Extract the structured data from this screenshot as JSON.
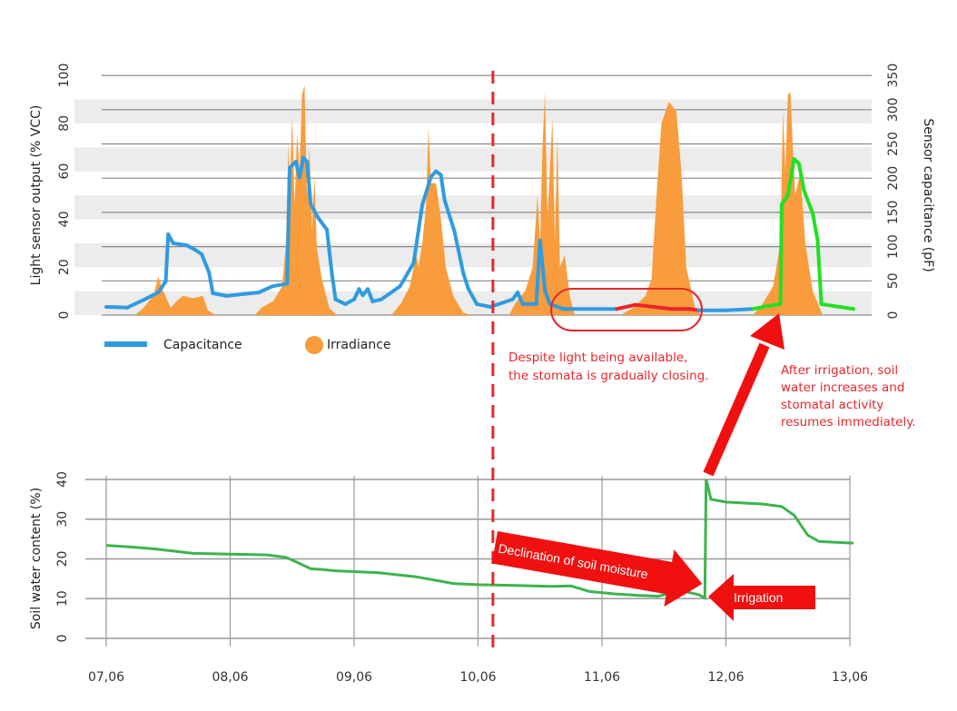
{
  "chart_data": [
    {
      "type": "line",
      "title": "",
      "ylabel": "Light sensor output (% VCC)",
      "ylabel_right": "Sensor capacitance (pF)",
      "ylim": [
        0,
        100
      ],
      "ylim_right": [
        0,
        350
      ],
      "yticks": [
        "0",
        "20",
        "40",
        "60",
        "80",
        "100"
      ],
      "yticks_right": [
        "0",
        "50",
        "100",
        "150",
        "200",
        "250",
        "300",
        "350"
      ],
      "grid": true,
      "legend": {
        "placement": "bottom-left",
        "entries": [
          "Capacitance",
          "Irradiance"
        ]
      },
      "colors": {
        "capacitance": "#2f9be0",
        "irradiance": "#f89c3c",
        "stress": "#e8262b",
        "recovery": "#22e022",
        "band": "#ececec"
      },
      "x_unit": "days since 07,06",
      "series": [
        {
          "name": "Capacitance",
          "axis": "right",
          "segments_note": "red between day 4.12 and 4.78, green after day 5.22",
          "points": [
            [
              0,
              12
            ],
            [
              0.17,
              11
            ],
            [
              0.31,
              23
            ],
            [
              0.42,
              33
            ],
            [
              0.48,
              49
            ],
            [
              0.5,
              118
            ],
            [
              0.54,
              105
            ],
            [
              0.65,
              102
            ],
            [
              0.72,
              95
            ],
            [
              0.77,
              89
            ],
            [
              0.83,
              62
            ],
            [
              0.86,
              32
            ],
            [
              0.97,
              28
            ],
            [
              1.12,
              31
            ],
            [
              1.23,
              33
            ],
            [
              1.34,
              42
            ],
            [
              1.46,
              46
            ],
            [
              1.48,
              215
            ],
            [
              1.53,
              224
            ],
            [
              1.56,
              201
            ],
            [
              1.59,
              230
            ],
            [
              1.62,
              224
            ],
            [
              1.65,
              162
            ],
            [
              1.71,
              142
            ],
            [
              1.78,
              125
            ],
            [
              1.82,
              62
            ],
            [
              1.85,
              23
            ],
            [
              1.93,
              16
            ],
            [
              2.0,
              23
            ],
            [
              2.04,
              38
            ],
            [
              2.07,
              29
            ],
            [
              2.11,
              38
            ],
            [
              2.15,
              20
            ],
            [
              2.22,
              23
            ],
            [
              2.37,
              42
            ],
            [
              2.48,
              76
            ],
            [
              2.55,
              161
            ],
            [
              2.62,
              202
            ],
            [
              2.66,
              210
            ],
            [
              2.7,
              205
            ],
            [
              2.73,
              168
            ],
            [
              2.81,
              122
            ],
            [
              2.88,
              62
            ],
            [
              2.92,
              39
            ],
            [
              2.99,
              16
            ],
            [
              3.1,
              12
            ],
            [
              3.28,
              23
            ],
            [
              3.32,
              33
            ],
            [
              3.36,
              16
            ],
            [
              3.47,
              16
            ],
            [
              3.5,
              109
            ],
            [
              3.54,
              36
            ],
            [
              3.58,
              16
            ],
            [
              3.69,
              9
            ],
            [
              4.12,
              9
            ],
            [
              4.27,
              15
            ],
            [
              4.42,
              12
            ],
            [
              4.56,
              9
            ],
            [
              4.71,
              9
            ],
            [
              4.78,
              7
            ],
            [
              5.0,
              7
            ],
            [
              5.22,
              9
            ],
            [
              5.33,
              13
            ],
            [
              5.44,
              16
            ],
            [
              5.45,
              162
            ],
            [
              5.5,
              175
            ],
            [
              5.55,
              228
            ],
            [
              5.59,
              221
            ],
            [
              5.63,
              182
            ],
            [
              5.7,
              149
            ],
            [
              5.74,
              109
            ],
            [
              5.77,
              16
            ],
            [
              6.03,
              9
            ]
          ]
        },
        {
          "name": "Irradiance",
          "axis": "left",
          "type": "area",
          "points": [
            [
              0,
              0
            ],
            [
              0.23,
              0
            ],
            [
              0.3,
              3
            ],
            [
              0.38,
              8
            ],
            [
              0.42,
              16
            ],
            [
              0.46,
              10
            ],
            [
              0.52,
              3
            ],
            [
              0.57,
              6
            ],
            [
              0.62,
              8
            ],
            [
              0.7,
              7
            ],
            [
              0.78,
              8
            ],
            [
              0.82,
              2
            ],
            [
              0.88,
              0
            ],
            [
              1.2,
              0
            ],
            [
              1.25,
              3
            ],
            [
              1.35,
              6
            ],
            [
              1.42,
              12
            ],
            [
              1.45,
              30
            ],
            [
              1.47,
              72
            ],
            [
              1.48,
              50
            ],
            [
              1.5,
              83
            ],
            [
              1.52,
              45
            ],
            [
              1.54,
              76
            ],
            [
              1.56,
              60
            ],
            [
              1.58,
              92
            ],
            [
              1.6,
              96
            ],
            [
              1.62,
              50
            ],
            [
              1.64,
              70
            ],
            [
              1.66,
              35
            ],
            [
              1.68,
              58
            ],
            [
              1.7,
              28
            ],
            [
              1.74,
              15
            ],
            [
              1.8,
              3
            ],
            [
              1.86,
              0
            ],
            [
              2.3,
              0
            ],
            [
              2.38,
              5
            ],
            [
              2.45,
              12
            ],
            [
              2.5,
              25
            ],
            [
              2.52,
              20
            ],
            [
              2.55,
              30
            ],
            [
              2.58,
              45
            ],
            [
              2.6,
              78
            ],
            [
              2.62,
              55
            ],
            [
              2.66,
              55
            ],
            [
              2.7,
              40
            ],
            [
              2.74,
              20
            ],
            [
              2.8,
              8
            ],
            [
              2.88,
              1
            ],
            [
              2.95,
              0
            ],
            [
              3.25,
              0
            ],
            [
              3.3,
              5
            ],
            [
              3.38,
              10
            ],
            [
              3.44,
              20
            ],
            [
              3.48,
              50
            ],
            [
              3.5,
              30
            ],
            [
              3.52,
              70
            ],
            [
              3.54,
              93
            ],
            [
              3.56,
              40
            ],
            [
              3.6,
              82
            ],
            [
              3.62,
              30
            ],
            [
              3.64,
              75
            ],
            [
              3.66,
              20
            ],
            [
              3.7,
              25
            ],
            [
              3.74,
              8
            ],
            [
              3.78,
              0
            ],
            [
              4.15,
              0
            ],
            [
              4.25,
              3
            ],
            [
              4.35,
              8
            ],
            [
              4.4,
              15
            ],
            [
              4.44,
              50
            ],
            [
              4.48,
              80
            ],
            [
              4.54,
              89
            ],
            [
              4.6,
              85
            ],
            [
              4.64,
              60
            ],
            [
              4.68,
              20
            ],
            [
              4.75,
              3
            ],
            [
              4.8,
              0
            ],
            [
              5.22,
              0
            ],
            [
              5.3,
              5
            ],
            [
              5.38,
              12
            ],
            [
              5.44,
              30
            ],
            [
              5.46,
              85
            ],
            [
              5.48,
              60
            ],
            [
              5.5,
              92
            ],
            [
              5.52,
              93
            ],
            [
              5.54,
              70
            ],
            [
              5.56,
              50
            ],
            [
              5.6,
              60
            ],
            [
              5.64,
              30
            ],
            [
              5.7,
              10
            ],
            [
              5.78,
              0
            ],
            [
              6.03,
              0
            ]
          ]
        }
      ],
      "annotations": [
        {
          "text_lines": [
            "Despite light being available,",
            "the stomata is gradually closing."
          ]
        },
        {
          "text_lines": [
            "After irrigation, soil",
            "water increases and",
            "stomatal activity",
            "resumes immediately."
          ]
        }
      ],
      "marker_line_day": 3.12
    },
    {
      "type": "line",
      "ylabel": "Soil water content (%)",
      "xlabel": "",
      "ylim": [
        0,
        40
      ],
      "yticks": [
        "0",
        "10",
        "20",
        "30",
        "40"
      ],
      "xticks": [
        "07,06",
        "08,06",
        "09,06",
        "10,06",
        "11,06",
        "12,06",
        "13,06"
      ],
      "grid": true,
      "colors": {
        "line": "#3cb44b",
        "arrow": "#f01010"
      },
      "series": [
        {
          "name": "Soil water content",
          "points": [
            [
              0,
              23.4
            ],
            [
              0.2,
              23
            ],
            [
              0.4,
              22.5
            ],
            [
              0.7,
              21.4
            ],
            [
              1.0,
              21.2
            ],
            [
              1.3,
              21
            ],
            [
              1.45,
              20.4
            ],
            [
              1.55,
              19
            ],
            [
              1.65,
              17.5
            ],
            [
              1.75,
              17.3
            ],
            [
              1.85,
              17
            ],
            [
              2.2,
              16.5
            ],
            [
              2.5,
              15.5
            ],
            [
              2.8,
              13.8
            ],
            [
              3.0,
              13.5
            ],
            [
              3.3,
              13.3
            ],
            [
              3.6,
              13.1
            ],
            [
              3.75,
              13.2
            ],
            [
              3.9,
              11.8
            ],
            [
              4.1,
              11.2
            ],
            [
              4.3,
              10.8
            ],
            [
              4.45,
              10.6
            ],
            [
              4.55,
              11.3
            ],
            [
              4.68,
              11.7
            ],
            [
              4.78,
              11
            ],
            [
              4.83,
              10.2
            ],
            [
              4.84,
              40
            ],
            [
              4.88,
              35
            ],
            [
              5.0,
              34.3
            ],
            [
              5.3,
              33.8
            ],
            [
              5.45,
              33.2
            ],
            [
              5.55,
              31
            ],
            [
              5.66,
              26
            ],
            [
              5.75,
              24.4
            ],
            [
              6.0,
              24
            ],
            [
              6.03,
              24
            ]
          ]
        }
      ],
      "annotations": [
        {
          "text": "Declination of soil moisture"
        },
        {
          "text": "Irrigation"
        }
      ]
    }
  ]
}
